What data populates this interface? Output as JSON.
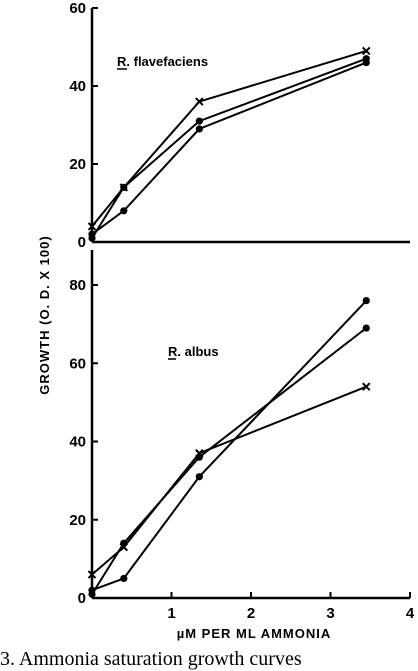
{
  "chart_data": [
    {
      "type": "line",
      "panel_label": "R. flavefaciens",
      "ylabel": "GROWTH (O. D. X 100)",
      "xlim": [
        0,
        4
      ],
      "ylim": [
        0,
        60
      ],
      "yticks": [
        0,
        20,
        40,
        60
      ],
      "grid": false,
      "series": [
        {
          "marker": "x",
          "x": [
            0,
            0.4,
            1.35,
            3.45
          ],
          "y": [
            4,
            14,
            36,
            49
          ]
        },
        {
          "marker": "dot",
          "x": [
            0,
            0.4,
            1.35,
            3.45
          ],
          "y": [
            2,
            8,
            29,
            46
          ]
        },
        {
          "marker": "dot",
          "x": [
            0,
            0.4,
            1.35,
            3.45
          ],
          "y": [
            1,
            14,
            31,
            47
          ]
        }
      ]
    },
    {
      "type": "line",
      "panel_label": "R. albus",
      "xlabel": "µM PER ML AMMONIA",
      "xlim": [
        0,
        4
      ],
      "ylim": [
        0,
        80
      ],
      "xticks": [
        1,
        2,
        3,
        4
      ],
      "yticks": [
        0,
        20,
        40,
        60,
        80
      ],
      "grid": false,
      "series": [
        {
          "marker": "dot",
          "x": [
            0,
            0.4,
            1.35,
            3.45
          ],
          "y": [
            2,
            5,
            31,
            76
          ]
        },
        {
          "marker": "dot",
          "x": [
            0,
            0.4,
            1.35,
            3.45
          ],
          "y": [
            1,
            14,
            36,
            69
          ]
        },
        {
          "marker": "x",
          "x": [
            0,
            0.4,
            1.35,
            3.45
          ],
          "y": [
            6,
            13,
            37,
            54
          ]
        }
      ]
    }
  ],
  "caption": "3. Ammonia saturation growth curves"
}
